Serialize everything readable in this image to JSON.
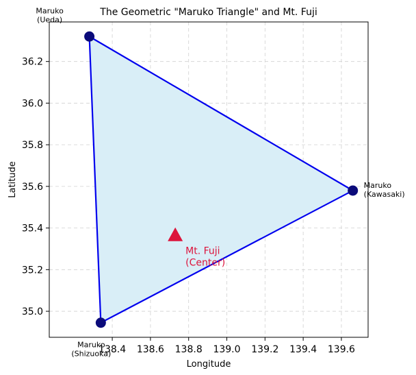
{
  "chart_data": {
    "type": "scatter",
    "title": "The Geometric \"Maruko Triangle\" and Mt. Fuji",
    "xlabel": "Longitude",
    "ylabel": "Latitude",
    "xlim": [
      138.07,
      139.74
    ],
    "ylim": [
      34.875,
      36.39
    ],
    "xticks": [
      138.4,
      138.6,
      138.8,
      139.0,
      139.2,
      139.4,
      139.6
    ],
    "yticks": [
      35.0,
      35.2,
      35.4,
      35.6,
      35.8,
      36.0,
      36.2
    ],
    "grid": true,
    "triangle": {
      "fill": "#d9eef7",
      "edge": "#0000ee",
      "vertices": [
        {
          "name": "Ueda",
          "x": 138.28,
          "y": 36.32,
          "label_lines": [
            "Maruko",
            "(Ueda)"
          ]
        },
        {
          "name": "Kawasaki",
          "x": 139.66,
          "y": 35.58,
          "label_lines": [
            "Maruko",
            "(Kawasaki)"
          ]
        },
        {
          "name": "Shizuoka",
          "x": 138.34,
          "y": 34.945,
          "label_lines": [
            "Maruko",
            "(Shizuoka)"
          ]
        }
      ],
      "marker_color": "#0b0b7a"
    },
    "center": {
      "name": "Mt. Fuji",
      "x": 138.73,
      "y": 35.36,
      "label_lines": [
        "Mt. Fuji",
        "(Center)"
      ],
      "color": "#dc143c"
    }
  }
}
